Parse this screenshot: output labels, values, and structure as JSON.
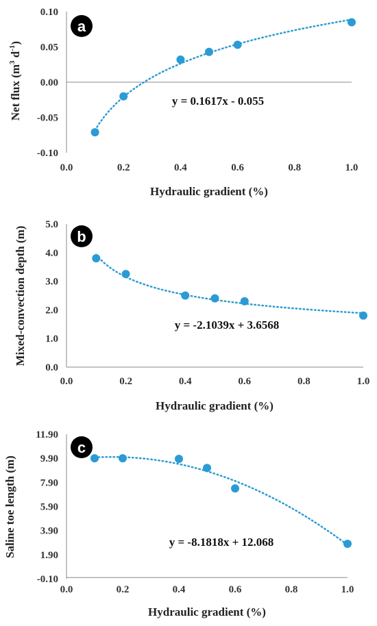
{
  "chart_data": [
    {
      "type": "scatter",
      "panel": "a",
      "xlabel": "Hydraulic gradient (%)",
      "ylabel": "Net flux (m³ d⁻¹)",
      "xlim": [
        0.0,
        1.0
      ],
      "ylim": [
        -0.1,
        0.1
      ],
      "xticks": [
        "0.0",
        "0.2",
        "0.4",
        "0.6",
        "0.8",
        "1.0"
      ],
      "yticks": [
        "-0.10",
        "-0.05",
        "0.00",
        "0.05",
        "0.10"
      ],
      "x": [
        0.1,
        0.2,
        0.4,
        0.5,
        0.6,
        1.0
      ],
      "y": [
        -0.071,
        -0.02,
        0.032,
        0.043,
        0.053,
        0.085
      ],
      "equation": "y = 0.1617x - 0.055",
      "trendline": "logarithmic",
      "grid": false
    },
    {
      "type": "scatter",
      "panel": "b",
      "xlabel": "Hydraulic gradient (%)",
      "ylabel": "Mixed-convection depth (m)",
      "xlim": [
        0.0,
        1.0
      ],
      "ylim": [
        0.0,
        5.0
      ],
      "xticks": [
        "0.0",
        "0.2",
        "0.4",
        "0.6",
        "0.8",
        "1.0"
      ],
      "yticks": [
        "0.0",
        "1.0",
        "2.0",
        "3.0",
        "4.0",
        "5.0"
      ],
      "x": [
        0.1,
        0.2,
        0.4,
        0.5,
        0.6,
        1.0
      ],
      "y": [
        3.8,
        3.25,
        2.5,
        2.4,
        2.3,
        1.8
      ],
      "equation": "y = -2.1039x + 3.6568",
      "trendline": "power",
      "grid": false
    },
    {
      "type": "scatter",
      "panel": "c",
      "xlabel": "Hydraulic gradient (%)",
      "ylabel": "Saline toe length (m)",
      "xlim": [
        0.0,
        1.0
      ],
      "ylim": [
        -0.1,
        11.9
      ],
      "xticks": [
        "0.0",
        "0.2",
        "0.4",
        "0.6",
        "0.8",
        "1.0"
      ],
      "yticks": [
        "-0.10",
        "1.90",
        "3.90",
        "5.90",
        "7.90",
        "9.90",
        "11.90"
      ],
      "x": [
        0.1,
        0.2,
        0.4,
        0.5,
        0.6,
        1.0
      ],
      "y": [
        9.9,
        9.9,
        9.85,
        9.1,
        7.4,
        2.8
      ],
      "equation": "y = -8.1818x + 12.068",
      "trendline": "polynomial",
      "grid": false
    }
  ],
  "colors": {
    "series": "#2a9bd4",
    "badge": "#000000",
    "axis": "#888888"
  }
}
